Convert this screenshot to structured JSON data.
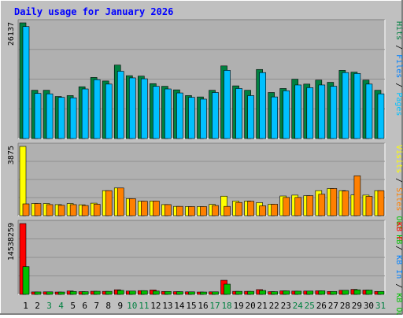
{
  "colors": {
    "background": "#C0C0C0",
    "panel": "#B0B0B0",
    "title": "#0000FF",
    "hits": "#008040",
    "files": "#0080FF",
    "pages": "#00C0FF",
    "visits": "#FFFF00",
    "sites": "#FF8000",
    "kb_f": "#FF0000",
    "kb_in": "#0080FF",
    "kb_out": "#00C000",
    "weekend": "#008040",
    "weekday": "#000000"
  },
  "chart_data": {
    "type": "bar",
    "title": "Daily usage for January 2026",
    "categories": [
      "1",
      "2",
      "3",
      "4",
      "5",
      "6",
      "7",
      "8",
      "9",
      "10",
      "11",
      "12",
      "13",
      "14",
      "15",
      "16",
      "17",
      "18",
      "19",
      "20",
      "21",
      "22",
      "23",
      "24",
      "25",
      "26",
      "27",
      "28",
      "29",
      "30",
      "31"
    ],
    "weekend_days": [
      "3",
      "4",
      "10",
      "11",
      "17",
      "18",
      "24",
      "25",
      "31"
    ],
    "panels": [
      {
        "ylabel": "26137",
        "ymax": 26137,
        "legend": [
          {
            "text": "Hits",
            "color": "#008040"
          },
          {
            "text": "/",
            "color": "#000000"
          },
          {
            "text": "Files",
            "color": "#0080FF"
          },
          {
            "text": "/",
            "color": "#000000"
          },
          {
            "text": "Pages",
            "color": "#00C0FF"
          }
        ],
        "series": [
          {
            "name": "Hits",
            "color": "#008040",
            "values": [
              26137,
              10900,
              10900,
              9500,
              9700,
              11700,
              13800,
              13000,
              16600,
              14200,
              14100,
              12400,
              11800,
              11000,
              9700,
              9400,
              10900,
              16400,
              11900,
              10900,
              15600,
              10400,
              11300,
              13400,
              12300,
              13200,
              12700,
              15400,
              15000,
              13200,
              10900
            ]
          },
          {
            "name": "Files",
            "color": "#00C0FF",
            "values": [
              25300,
              10200,
              10100,
              9300,
              9200,
              11200,
              13300,
              12300,
              15200,
              13700,
              13500,
              11800,
              11200,
              10300,
              9300,
              8900,
              10400,
              15400,
              11300,
              9700,
              14900,
              9400,
              10800,
              12100,
              11500,
              12100,
              11800,
              14900,
              14700,
              12300,
              10100
            ]
          }
        ]
      },
      {
        "ylabel": "3875",
        "ymax": 3875,
        "legend": [
          {
            "text": "Visits",
            "color": "#FFFF00"
          },
          {
            "text": "/",
            "color": "#000000"
          },
          {
            "text": "Sites",
            "color": "#FF8000"
          },
          {
            "text": "Out",
            "color": "#00C000"
          },
          {
            "text": "KB",
            "color": "#00C000"
          }
        ],
        "series": [
          {
            "name": "Visits",
            "color": "#FFFF00",
            "values": [
              3875,
              680,
              680,
              620,
              680,
              610,
              700,
              1400,
              1550,
              950,
              810,
              820,
              620,
              520,
              510,
              510,
              630,
              1090,
              820,
              820,
              730,
              640,
              1100,
              1150,
              1120,
              1400,
              1520,
              1400,
              1160,
              1150,
              1400
            ]
          },
          {
            "name": "Sites",
            "color": "#FF8000",
            "values": [
              660,
              680,
              620,
              580,
              620,
              570,
              640,
              1400,
              1550,
              950,
              810,
              820,
              620,
              520,
              510,
              510,
              570,
              520,
              740,
              810,
              550,
              640,
              1020,
              1020,
              1120,
              1200,
              1520,
              1380,
              2230,
              1080,
              1400
            ]
          }
        ]
      },
      {
        "ylabel": "14538259",
        "ymax": 14538259,
        "legend": [
          {
            "text": "KB",
            "color": "#FF0000"
          },
          {
            "text": "F",
            "color": "#FF0000"
          },
          {
            "text": "/",
            "color": "#000000"
          },
          {
            "text": "KB",
            "color": "#0080FF"
          },
          {
            "text": "In",
            "color": "#0080FF"
          },
          {
            "text": "/",
            "color": "#000000"
          },
          {
            "text": "KB",
            "color": "#00C000"
          },
          {
            "text": "Out",
            "color": "#00C000"
          }
        ],
        "series": [
          {
            "name": "KB F",
            "color": "#FF0000",
            "values": [
              14538259,
              500000,
              520000,
              480000,
              700000,
              560000,
              640000,
              620000,
              950000,
              680000,
              770000,
              900000,
              600000,
              560000,
              520000,
              480000,
              520000,
              2900000,
              620000,
              620000,
              980000,
              560000,
              720000,
              660000,
              680000,
              730000,
              600000,
              840000,
              1030000,
              880000,
              600000
            ]
          },
          {
            "name": "KB Out",
            "color": "#00C000",
            "values": [
              5700000,
              500000,
              520000,
              480000,
              600000,
              560000,
              640000,
              620000,
              820000,
              680000,
              770000,
              680000,
              600000,
              560000,
              520000,
              480000,
              520000,
              2100000,
              620000,
              620000,
              800000,
              560000,
              720000,
              660000,
              680000,
              730000,
              600000,
              840000,
              940000,
              880000,
              600000
            ]
          }
        ]
      }
    ]
  }
}
